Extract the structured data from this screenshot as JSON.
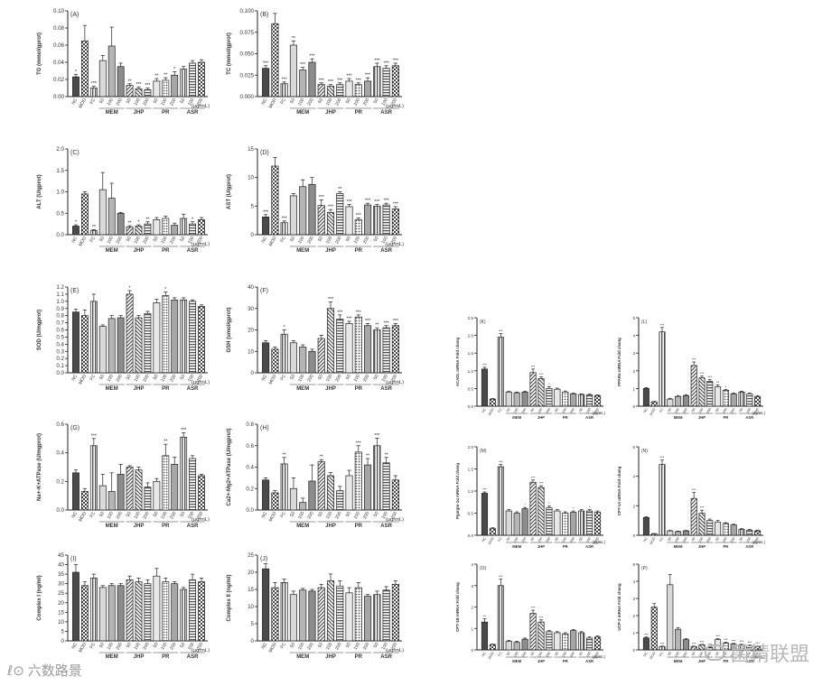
{
  "groups": [
    "MEM",
    "JHP",
    "PR",
    "ASR"
  ],
  "units": "(μg/mL)",
  "categories": [
    "NC",
    "MOD",
    "FC",
    "50",
    "100",
    "200",
    "50",
    "100",
    "200",
    "50",
    "100",
    "200",
    "50",
    "100",
    "200"
  ],
  "watermark_left": "六数路景",
  "watermark_right": "菌精联盟",
  "chart_data": [
    {
      "id": "A",
      "type": "bar",
      "label": "(A)",
      "ylabel": "TG (mmol/gprot)",
      "ylim": [
        0,
        0.1
      ],
      "yticks": [
        "0.00",
        "0.02",
        "0.04",
        "0.06",
        "0.08",
        "0.10"
      ],
      "values": [
        0.023,
        0.065,
        0.01,
        0.042,
        0.059,
        0.035,
        0.013,
        0.009,
        0.008,
        0.018,
        0.019,
        0.025,
        0.032,
        0.039,
        0.04
      ],
      "errors": [
        0.003,
        0.018,
        0.002,
        0.006,
        0.022,
        0.004,
        0.002,
        0.002,
        0.002,
        0.003,
        0.003,
        0.004,
        0.003,
        0.003,
        0.003
      ],
      "stars": [
        "*",
        "",
        "***",
        "",
        "",
        "",
        "**",
        "***",
        "***",
        "**",
        "**",
        "*",
        "",
        "",
        ""
      ]
    },
    {
      "id": "B",
      "type": "bar",
      "label": "(B)",
      "ylabel": "TC (mmol/gprot)",
      "ylim": [
        0,
        0.1
      ],
      "yticks": [
        "0.000",
        "0.025",
        "0.050",
        "0.075",
        "0.100"
      ],
      "values": [
        0.033,
        0.085,
        0.015,
        0.06,
        0.031,
        0.04,
        0.014,
        0.012,
        0.014,
        0.018,
        0.014,
        0.018,
        0.035,
        0.033,
        0.036
      ],
      "errors": [
        0.003,
        0.012,
        0.002,
        0.005,
        0.003,
        0.004,
        0.002,
        0.002,
        0.002,
        0.003,
        0.002,
        0.004,
        0.004,
        0.003,
        0.003
      ],
      "stars": [
        "***",
        "",
        "***",
        "**",
        "***",
        "***",
        "***",
        "***",
        "***",
        "***",
        "***",
        "***",
        "***",
        "***",
        "***"
      ]
    },
    {
      "id": "C",
      "type": "bar",
      "label": "(C)",
      "ylabel": "ALT (U/gprot)",
      "ylim": [
        0,
        2.0
      ],
      "yticks": [
        "0.0",
        "0.5",
        "1.0",
        "1.5",
        "2.0"
      ],
      "values": [
        0.2,
        0.95,
        0.1,
        1.05,
        0.85,
        0.5,
        0.18,
        0.2,
        0.25,
        0.35,
        0.38,
        0.22,
        0.38,
        0.25,
        0.35
      ],
      "errors": [
        0.03,
        0.05,
        0.02,
        0.4,
        0.35,
        0.02,
        0.03,
        0.03,
        0.05,
        0.05,
        0.05,
        0.05,
        0.1,
        0.05,
        0.05
      ],
      "stars": [
        "*",
        "",
        "**",
        "",
        "",
        "",
        "**",
        "*",
        "**",
        "",
        "",
        "",
        "",
        "*",
        ""
      ]
    },
    {
      "id": "D",
      "type": "bar",
      "label": "(D)",
      "ylabel": "AST (U/gprot)",
      "ylim": [
        0,
        15
      ],
      "yticks": [
        "0",
        "5",
        "10",
        "15"
      ],
      "values": [
        3.1,
        12,
        2.1,
        6.8,
        8.4,
        8.8,
        5.1,
        3.9,
        7.2,
        4.9,
        2.6,
        5.2,
        5.0,
        5.2,
        4.5
      ],
      "errors": [
        0.4,
        1.5,
        0.3,
        0.4,
        1.2,
        1.2,
        1.0,
        0.5,
        0.3,
        0.4,
        0.3,
        0.3,
        0.3,
        0.3,
        0.4
      ],
      "stars": [
        "***",
        "",
        "***",
        "",
        "",
        "",
        "***",
        "***",
        "**",
        "***",
        "***",
        "***",
        "***",
        "***",
        "***"
      ]
    },
    {
      "id": "E",
      "type": "bar",
      "label": "(E)",
      "ylabel": "SOD (U/mgprot)",
      "ylim": [
        0,
        1.2
      ],
      "yticks": [
        "0.0",
        "0.1",
        "0.2",
        "0.3",
        "0.4",
        "0.5",
        "0.6",
        "0.7",
        "0.8",
        "0.9",
        "1.0",
        "1.1",
        "1.2"
      ],
      "values": [
        0.85,
        0.8,
        1.0,
        0.65,
        0.76,
        0.77,
        1.1,
        0.77,
        0.83,
        0.98,
        1.08,
        1.02,
        1.02,
        1.0,
        0.93
      ],
      "errors": [
        0.04,
        0.08,
        0.1,
        0.02,
        0.04,
        0.03,
        0.05,
        0.03,
        0.03,
        0.05,
        0.05,
        0.03,
        0.03,
        0.02,
        0.02
      ],
      "stars": [
        "",
        "",
        "",
        "",
        "",
        "",
        "*",
        "",
        "",
        "",
        "*",
        "",
        "",
        "",
        ""
      ]
    },
    {
      "id": "F",
      "type": "bar",
      "label": "(F)",
      "ylabel": "GSH (umol/gprot)",
      "ylim": [
        0,
        40
      ],
      "yticks": [
        "0",
        "10",
        "20",
        "30",
        "40"
      ],
      "values": [
        14,
        11,
        18,
        14,
        12,
        10,
        16,
        30,
        25,
        23,
        26,
        22,
        20,
        21,
        22
      ],
      "errors": [
        1,
        1,
        2,
        1,
        1,
        1,
        1.5,
        3,
        2,
        1,
        1,
        1,
        1,
        1,
        1
      ],
      "stars": [
        "",
        "",
        "*",
        "",
        "",
        "",
        "",
        "***",
        "***",
        "***",
        "***",
        "***",
        "**",
        "***",
        "***"
      ]
    },
    {
      "id": "G",
      "type": "bar",
      "label": "(G)",
      "ylabel": "Na+-K+ATPase (U/mgprot)",
      "ylim": [
        0,
        0.6
      ],
      "yticks": [
        "0.0",
        "0.2",
        "0.4",
        "0.6"
      ],
      "values": [
        0.26,
        0.13,
        0.45,
        0.17,
        0.13,
        0.25,
        0.3,
        0.28,
        0.16,
        0.2,
        0.38,
        0.32,
        0.51,
        0.36,
        0.24
      ],
      "errors": [
        0.02,
        0.02,
        0.05,
        0.08,
        0.13,
        0.07,
        0.01,
        0.02,
        0.03,
        0.02,
        0.08,
        0.05,
        0.03,
        0.02,
        0.01
      ],
      "stars": [
        "",
        "",
        "***",
        "",
        "",
        "",
        "",
        "",
        "",
        "",
        "**",
        "",
        "***",
        "",
        ""
      ]
    },
    {
      "id": "H",
      "type": "bar",
      "label": "(H)",
      "ylabel": "Ca2+-Mg2+ATPase (U/mgprot)",
      "ylim": [
        0,
        0.8
      ],
      "yticks": [
        "0.0",
        "0.2",
        "0.4",
        "0.6",
        "0.8"
      ],
      "values": [
        0.28,
        0.16,
        0.43,
        0.2,
        0.07,
        0.27,
        0.45,
        0.32,
        0.18,
        0.32,
        0.54,
        0.42,
        0.6,
        0.44,
        0.28
      ],
      "errors": [
        0.02,
        0.02,
        0.06,
        0.1,
        0.04,
        0.15,
        0.02,
        0.03,
        0.04,
        0.05,
        0.06,
        0.06,
        0.07,
        0.05,
        0.04
      ],
      "stars": [
        "",
        "",
        "**",
        "",
        "",
        "",
        "**",
        "",
        "",
        "",
        "***",
        "**",
        "***",
        "**",
        ""
      ]
    },
    {
      "id": "I",
      "type": "bar",
      "label": "(I)",
      "ylabel": "Complex I (ng/ml)",
      "ylim": [
        0,
        45
      ],
      "yticks": [
        "0",
        "5",
        "10",
        "15",
        "20",
        "25",
        "30",
        "35",
        "40",
        "45"
      ],
      "values": [
        36,
        29,
        33,
        28,
        29,
        29,
        32,
        31,
        30,
        34,
        31,
        30,
        27,
        32,
        31
      ],
      "errors": [
        4,
        2,
        2,
        1,
        1,
        1,
        2,
        2,
        2,
        4,
        2,
        1,
        1,
        3,
        2
      ],
      "stars": [
        "",
        "",
        "",
        "",
        "",
        "",
        "",
        "",
        "",
        "",
        "",
        "",
        "",
        "",
        ""
      ]
    },
    {
      "id": "J",
      "type": "bar",
      "label": "(J)",
      "ylabel": "Complex II (ng/ml)",
      "ylim": [
        0,
        25
      ],
      "yticks": [
        "0",
        "5",
        "10",
        "15",
        "20",
        "25"
      ],
      "values": [
        21,
        15.5,
        17,
        13.5,
        14.8,
        14.5,
        15.5,
        17.5,
        16,
        14,
        15.5,
        13,
        13.5,
        14.8,
        16.5
      ],
      "errors": [
        1.5,
        1.5,
        1,
        1,
        0.5,
        0.5,
        1,
        2,
        1.5,
        1.5,
        1.5,
        0.5,
        1,
        1,
        1
      ],
      "stars": [
        "",
        "",
        "",
        "",
        "",
        "",
        "",
        "",
        "",
        "",
        "",
        "",
        "",
        "",
        ""
      ]
    },
    {
      "id": "K",
      "type": "bar",
      "label": "(K)",
      "ylabel": "ACADL mRNA Fold chang",
      "ylim": [
        0,
        2.5
      ],
      "yticks": [
        "0.0",
        "0.5",
        "1.0",
        "1.5",
        "2.0",
        "2.5"
      ],
      "values": [
        1.05,
        0.2,
        1.95,
        0.4,
        0.38,
        0.4,
        0.95,
        0.78,
        0.5,
        0.48,
        0.4,
        0.35,
        0.33,
        0.32,
        0.3
      ],
      "errors": [
        0.05,
        0.02,
        0.1,
        0.02,
        0.02,
        0.02,
        0.1,
        0.05,
        0.05,
        0.03,
        0.03,
        0.02,
        0.02,
        0.02,
        0.02
      ],
      "stars": [
        "***",
        "",
        "***",
        "",
        "",
        "",
        "***",
        "***",
        "*",
        "",
        "",
        "",
        "",
        "",
        ""
      ]
    },
    {
      "id": "L",
      "type": "bar",
      "label": "(L)",
      "ylabel": "PPARα mRNA Fold chang",
      "ylim": [
        0,
        5
      ],
      "yticks": [
        "0",
        "1",
        "2",
        "3",
        "4",
        "5"
      ],
      "values": [
        1.0,
        0.25,
        4.2,
        0.4,
        0.55,
        0.6,
        2.3,
        1.6,
        1.4,
        1.1,
        0.9,
        0.7,
        0.8,
        0.7,
        0.55
      ],
      "errors": [
        0.05,
        0.02,
        0.25,
        0.05,
        0.05,
        0.05,
        0.2,
        0.1,
        0.1,
        0.1,
        0.05,
        0.05,
        0.05,
        0.05,
        0.05
      ],
      "stars": [
        "",
        "",
        "***",
        "",
        "",
        "",
        "***",
        "***",
        "***",
        "**",
        "*",
        "",
        "",
        "",
        ""
      ]
    },
    {
      "id": "M",
      "type": "bar",
      "label": "(M)",
      "ylabel": "Pgargm-1α mRNA Fold chang",
      "ylim": [
        0,
        2.0
      ],
      "yticks": [
        "0.0",
        "0.5",
        "1.0",
        "1.5",
        "2.0"
      ],
      "values": [
        0.95,
        0.15,
        1.55,
        0.55,
        0.5,
        0.6,
        1.2,
        1.08,
        0.62,
        0.55,
        0.5,
        0.52,
        0.55,
        0.55,
        0.52
      ],
      "errors": [
        0.03,
        0.02,
        0.05,
        0.03,
        0.03,
        0.03,
        0.05,
        0.04,
        0.04,
        0.03,
        0.03,
        0.03,
        0.03,
        0.03,
        0.03
      ],
      "stars": [
        "***",
        "",
        "***",
        "",
        "",
        "*",
        "***",
        "***",
        "*",
        "",
        "",
        "*",
        "",
        "*",
        ""
      ]
    },
    {
      "id": "N",
      "type": "bar",
      "label": "(N)",
      "ylabel": "CPT-1A mRNA Fold chang",
      "ylim": [
        0,
        6
      ],
      "yticks": [
        "0",
        "2",
        "4",
        "6"
      ],
      "values": [
        1.2,
        0.1,
        4.8,
        0.3,
        0.25,
        0.3,
        2.5,
        1.5,
        1.0,
        0.9,
        0.8,
        0.7,
        0.4,
        0.35,
        0.3
      ],
      "errors": [
        0.05,
        0.02,
        0.3,
        0.03,
        0.03,
        0.03,
        0.4,
        0.2,
        0.1,
        0.1,
        0.05,
        0.05,
        0.05,
        0.05,
        0.05
      ],
      "stars": [
        "",
        "",
        "***",
        "",
        "",
        "",
        "***",
        "***",
        "",
        "",
        "",
        "",
        "",
        "",
        ""
      ]
    },
    {
      "id": "O",
      "type": "bar",
      "label": "(O)",
      "ylabel": "CPT-1B mRNA Fold chang",
      "ylim": [
        0,
        4
      ],
      "yticks": [
        "0",
        "1",
        "2",
        "3",
        "4"
      ],
      "values": [
        1.3,
        0.25,
        3.0,
        0.4,
        0.35,
        0.5,
        1.7,
        1.3,
        0.85,
        0.8,
        0.75,
        0.9,
        0.8,
        0.55,
        0.6
      ],
      "errors": [
        0.15,
        0.02,
        0.3,
        0.05,
        0.05,
        0.05,
        0.15,
        0.1,
        0.05,
        0.05,
        0.05,
        0.05,
        0.05,
        0.05,
        0.05
      ],
      "stars": [
        "**",
        "",
        "***",
        "",
        "",
        "",
        "***",
        "***",
        "",
        "",
        "",
        "",
        "",
        "",
        ""
      ]
    },
    {
      "id": "P",
      "type": "bar",
      "label": "(P)",
      "ylabel": "UCP-2 mRNA Fold chang",
      "ylim": [
        0,
        5
      ],
      "yticks": [
        "0",
        "1",
        "2",
        "3",
        "4",
        "5"
      ],
      "values": [
        0.7,
        2.5,
        0.2,
        3.8,
        1.2,
        0.6,
        0.2,
        0.3,
        0.15,
        0.6,
        0.4,
        0.35,
        0.3,
        0.25,
        0.2
      ],
      "errors": [
        0.05,
        0.2,
        0.02,
        0.6,
        0.1,
        0.05,
        0.02,
        0.02,
        0.02,
        0.05,
        0.05,
        0.03,
        0.03,
        0.03,
        0.03
      ],
      "stars": [
        "***",
        "",
        "***",
        "",
        "",
        "",
        "***",
        "***",
        "***",
        "***",
        "***",
        "***",
        "***",
        "***",
        "***"
      ]
    }
  ]
}
